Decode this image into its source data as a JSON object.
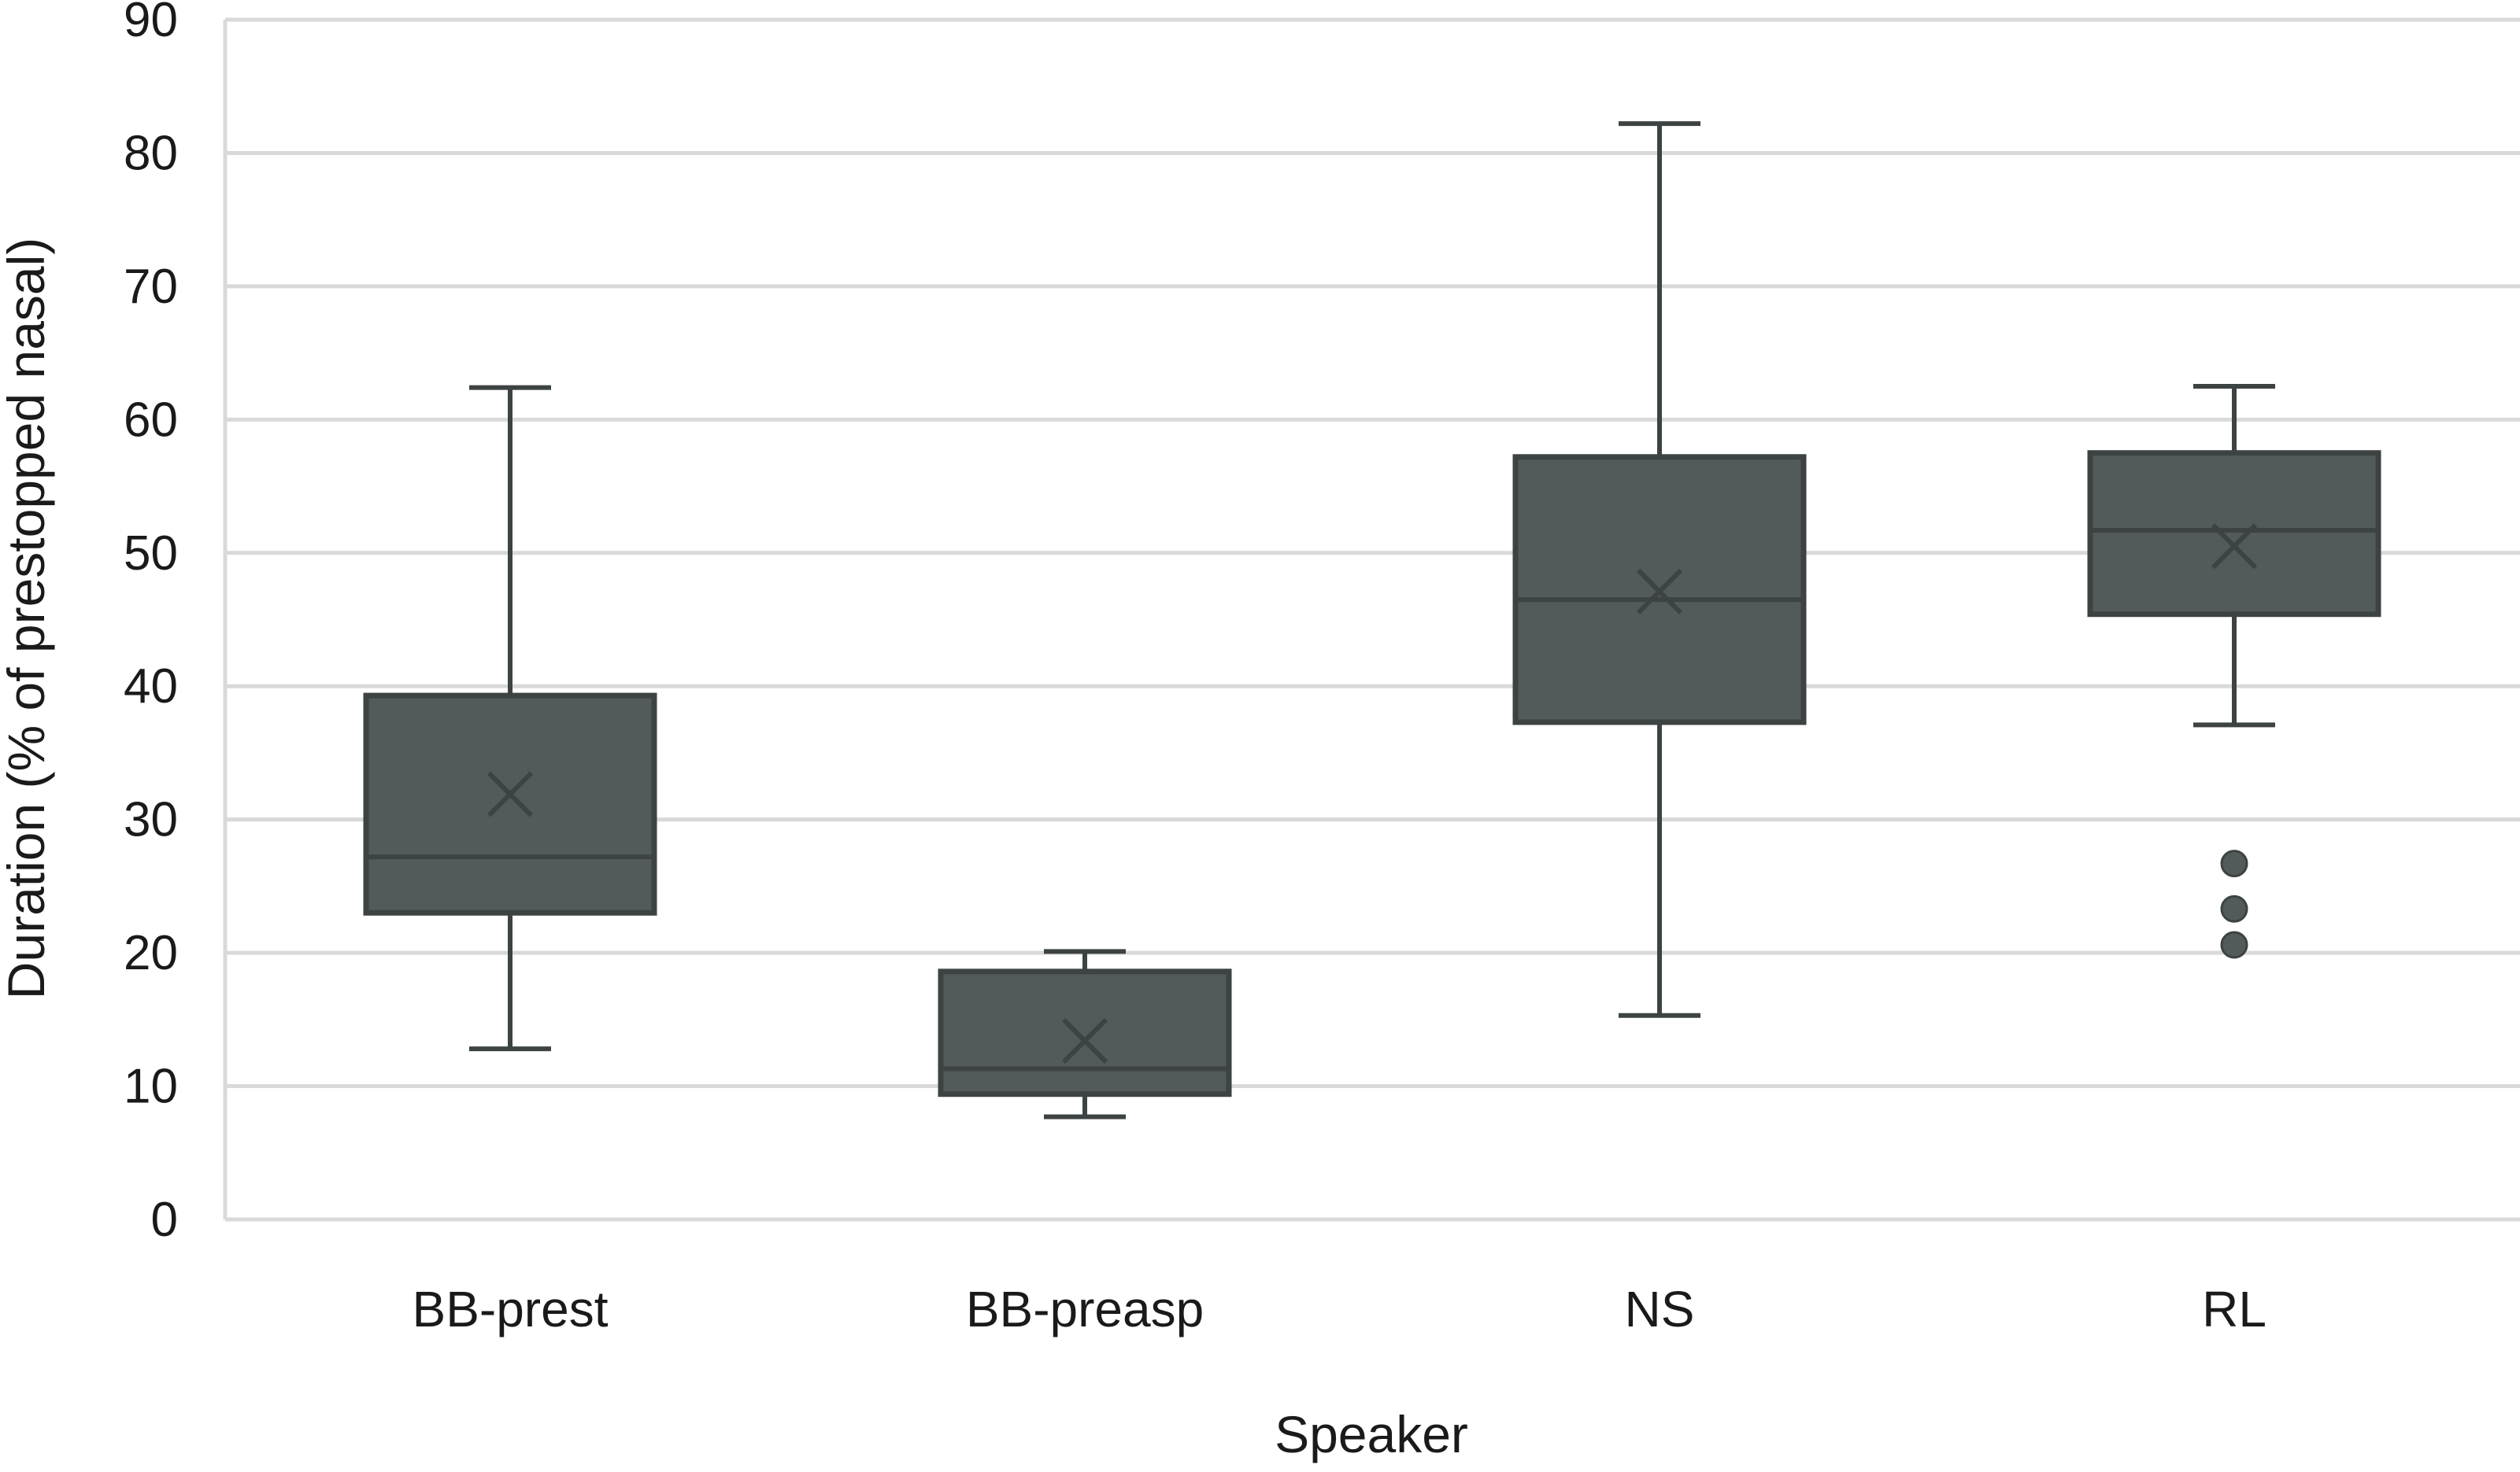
{
  "chart_data": {
    "type": "boxplot",
    "title": "",
    "xlabel": "Speaker",
    "ylabel": "Duration (% of prestopped nasal)",
    "ylim": [
      0,
      90
    ],
    "yticks": [
      0,
      10,
      20,
      30,
      40,
      50,
      60,
      70,
      80,
      90
    ],
    "grid": true,
    "legend": "none",
    "categories": [
      "BB-prest",
      "BB-preasp",
      "NS",
      "RL"
    ],
    "boxes": [
      {
        "category": "BB-prest",
        "whisker_low": 12.8,
        "q1": 23.0,
        "median": 27.2,
        "q3": 39.3,
        "whisker_high": 62.4,
        "mean": 31.9,
        "outliers": []
      },
      {
        "category": "BB-preasp",
        "whisker_low": 7.7,
        "q1": 9.4,
        "median": 11.3,
        "q3": 18.6,
        "whisker_high": 20.1,
        "mean": 13.4,
        "outliers": []
      },
      {
        "category": "NS",
        "whisker_low": 15.3,
        "q1": 37.3,
        "median": 46.5,
        "q3": 57.2,
        "whisker_high": 82.2,
        "mean": 47.1,
        "outliers": []
      },
      {
        "category": "RL",
        "whisker_low": 37.1,
        "q1": 45.4,
        "median": 51.7,
        "q3": 57.5,
        "whisker_high": 62.5,
        "mean": 50.5,
        "outliers": [
          26.7,
          23.3,
          20.6
        ]
      }
    ],
    "colors": {
      "box_fill": "#525a5a",
      "box_stroke": "#3d4343",
      "whisker": "#3d4343",
      "grid": "#d9d9d9",
      "axis": "#d9d9d9"
    }
  }
}
